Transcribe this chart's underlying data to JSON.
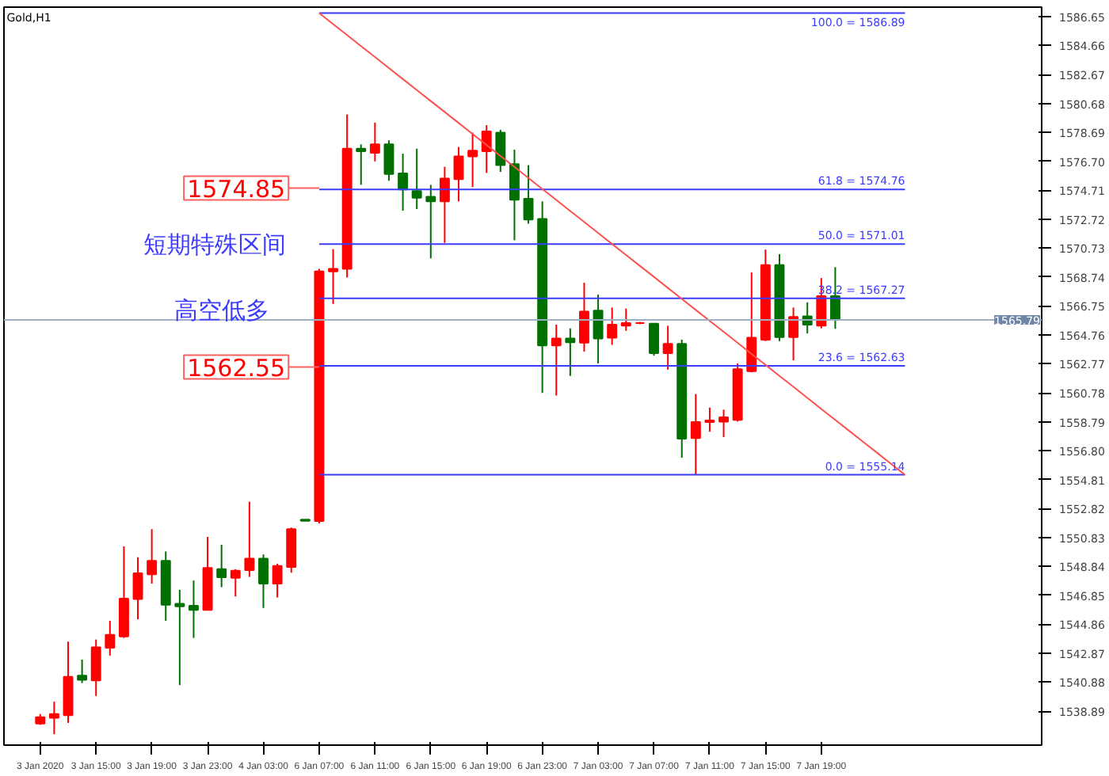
{
  "chart_data": {
    "type": "candlestick",
    "title": "Gold,H1",
    "categories": [
      "3 Jan 2020",
      null,
      null,
      null,
      "3 Jan 15:00",
      null,
      null,
      null,
      "3 Jan 19:00",
      null,
      null,
      null,
      "3 Jan 23:00",
      null,
      null,
      null,
      "4 Jan 03:00",
      null,
      null,
      null,
      "6 Jan 07:00",
      null,
      null,
      null,
      "6 Jan 11:00",
      null,
      null,
      null,
      "6 Jan 15:00",
      null,
      null,
      null,
      "6 Jan 19:00",
      null,
      null,
      null,
      "6 Jan 23:00",
      null,
      null,
      null,
      "7 Jan 03:00",
      null,
      null,
      null,
      "7 Jan 07:00",
      null,
      null,
      null,
      "7 Jan 11:00",
      null,
      null,
      null,
      "7 Jan 15:00",
      null,
      null,
      null,
      "7 Jan 19:00",
      null,
      null,
      null,
      null,
      null,
      null,
      null,
      null,
      null,
      null,
      null,
      null,
      null,
      null,
      null
    ],
    "ohlc": [
      [
        1538.04,
        1538.69,
        1537.94,
        1538.47
      ],
      [
        1538.43,
        1539.54,
        1537.3,
        1538.69
      ],
      [
        1538.61,
        1543.67,
        1538.08,
        1541.25
      ],
      [
        1541.33,
        1542.43,
        1540.82,
        1541.04
      ],
      [
        1541.0,
        1543.81,
        1539.93,
        1543.28
      ],
      [
        1543.25,
        1545.1,
        1542.71,
        1544.13
      ],
      [
        1544.03,
        1550.22,
        1543.92,
        1546.62
      ],
      [
        1546.59,
        1549.47,
        1545.2,
        1548.37
      ],
      [
        1548.3,
        1551.4,
        1547.66,
        1549.23
      ],
      [
        1549.23,
        1549.87,
        1545.1,
        1546.2
      ],
      [
        1546.27,
        1547.23,
        1540.68,
        1546.09
      ],
      [
        1546.13,
        1547.87,
        1543.92,
        1545.85
      ],
      [
        1545.85,
        1550.87,
        1545.85,
        1548.73
      ],
      [
        1548.65,
        1550.33,
        1547.41,
        1548.09
      ],
      [
        1548.05,
        1548.65,
        1546.77,
        1548.55
      ],
      [
        1548.59,
        1553.29,
        1548.12,
        1549.37
      ],
      [
        1549.37,
        1549.66,
        1545.98,
        1547.66
      ],
      [
        1547.66,
        1549.02,
        1546.7,
        1548.87
      ],
      [
        1548.8,
        1551.51,
        1548.41,
        1551.4
      ],
      [
        1552.05,
        1552.05,
        1551.98,
        1551.98
      ],
      [
        1551.96,
        1569.3,
        1551.8,
        1569.13
      ],
      [
        1569.13,
        1570.66,
        1566.89,
        1569.31
      ],
      [
        1569.31,
        1579.92,
        1568.71,
        1577.57
      ],
      [
        1577.57,
        1577.86,
        1575.08,
        1577.39
      ],
      [
        1577.28,
        1579.36,
        1576.69,
        1577.86
      ],
      [
        1577.86,
        1578.14,
        1575.36,
        1575.83
      ],
      [
        1575.86,
        1577.22,
        1573.3,
        1574.76
      ],
      [
        1574.66,
        1577.57,
        1573.41,
        1574.19
      ],
      [
        1574.26,
        1575.08,
        1570.02,
        1573.94
      ],
      [
        1573.94,
        1576.32,
        1571.09,
        1575.51
      ],
      [
        1575.47,
        1577.68,
        1573.94,
        1577.04
      ],
      [
        1577.04,
        1578.67,
        1574.93,
        1577.43
      ],
      [
        1577.39,
        1579.18,
        1575.9,
        1578.75
      ],
      [
        1578.67,
        1578.86,
        1575.97,
        1576.43
      ],
      [
        1576.5,
        1577.5,
        1571.27,
        1574.05
      ],
      [
        1574.12,
        1576.43,
        1572.41,
        1572.69
      ],
      [
        1572.73,
        1573.94,
        1560.77,
        1564.04
      ],
      [
        1564.04,
        1565.47,
        1560.59,
        1564.51
      ],
      [
        1564.51,
        1565.21,
        1561.94,
        1564.25
      ],
      [
        1564.22,
        1568.35,
        1563.61,
        1566.36
      ],
      [
        1566.43,
        1567.53,
        1562.8,
        1564.51
      ],
      [
        1564.57,
        1566.64,
        1564.08,
        1565.47
      ],
      [
        1565.39,
        1566.57,
        1565.04,
        1565.58
      ],
      [
        1565.58,
        1565.65,
        1565.5,
        1565.58
      ],
      [
        1565.53,
        1565.53,
        1563.33,
        1563.5
      ],
      [
        1563.5,
        1565.39,
        1562.37,
        1564.14
      ],
      [
        1564.14,
        1564.43,
        1556.31,
        1557.63
      ],
      [
        1557.67,
        1560.69,
        1555.14,
        1558.77
      ],
      [
        1558.77,
        1559.76,
        1558.1,
        1558.88
      ],
      [
        1558.8,
        1559.62,
        1557.73,
        1559.09
      ],
      [
        1558.91,
        1562.8,
        1558.8,
        1562.4
      ],
      [
        1562.26,
        1569.06,
        1562.19,
        1564.57
      ],
      [
        1564.43,
        1570.63,
        1564.33,
        1569.56
      ],
      [
        1569.56,
        1570.31,
        1564.33,
        1564.61
      ],
      [
        1564.61,
        1566.64,
        1563.01,
        1566.0
      ],
      [
        1566.04,
        1567.0,
        1564.86,
        1565.47
      ],
      [
        1565.39,
        1568.67,
        1565.21,
        1567.42
      ],
      [
        1567.42,
        1569.42,
        1565.18,
        1565.79
      ],
      null,
      null,
      null,
      null,
      null,
      null,
      null,
      null,
      null,
      null,
      null,
      null,
      null,
      null
    ],
    "colors": [
      "#ff0000",
      "#ff0000",
      "#ff0000",
      "#007000",
      "#ff0000",
      "#ff0000",
      "#ff0000",
      "#ff0000",
      "#ff0000",
      "#007000",
      "#007000",
      "#007000",
      "#ff0000",
      "#007000",
      "#ff0000",
      "#ff0000",
      "#007000",
      "#ff0000",
      "#ff0000",
      "#007000",
      "#ff0000",
      "#ff0000",
      "#ff0000",
      "#007000",
      "#ff0000",
      "#007000",
      "#007000",
      "#007000",
      "#007000",
      "#ff0000",
      "#ff0000",
      "#ff0000",
      "#ff0000",
      "#007000",
      "#007000",
      "#007000",
      "#007000",
      "#ff0000",
      "#007000",
      "#ff0000",
      "#007000",
      "#ff0000",
      "#ff0000",
      "#ff0000",
      "#007000",
      "#ff0000",
      "#007000",
      "#ff0000",
      "#ff0000",
      "#ff0000",
      "#ff0000",
      "#ff0000",
      "#ff0000",
      "#007000",
      "#ff0000",
      "#007000",
      "#ff0000",
      "#007000",
      null,
      null,
      null,
      null,
      null,
      null,
      null,
      null,
      null,
      null,
      null,
      null,
      null,
      null
    ],
    "series": [
      {
        "type": "line",
        "name": "100.0 = 1586.89",
        "color": "#3c3cff",
        "values": [
          null,
          null,
          null,
          null,
          null,
          null,
          null,
          null,
          null,
          null,
          null,
          null,
          null,
          null,
          null,
          null,
          null,
          null,
          null,
          null,
          1586.89,
          1586.89,
          1586.89,
          1586.89,
          1586.89,
          1586.89,
          1586.89,
          1586.89,
          1586.89,
          1586.89,
          1586.89,
          1586.89,
          1586.89,
          1586.89,
          1586.89,
          1586.89,
          1586.89,
          1586.89,
          1586.89,
          1586.89,
          1586.89,
          1586.89,
          1586.89,
          1586.89,
          1586.89,
          1586.89,
          1586.89,
          1586.89,
          1586.89,
          1586.89,
          1586.89,
          1586.89,
          1586.89,
          1586.89,
          1586.89,
          1586.89,
          1586.89,
          1586.89,
          1586.89,
          1586.89,
          1586.89,
          1586.89,
          1586.89,
          null,
          null,
          null,
          null,
          null,
          null,
          null,
          null,
          null
        ]
      },
      {
        "type": "line",
        "name": "61.8 = 1574.76",
        "color": "#3c3cff",
        "values": [
          null,
          null,
          null,
          null,
          null,
          null,
          null,
          null,
          null,
          null,
          null,
          null,
          null,
          null,
          null,
          null,
          null,
          null,
          null,
          null,
          1574.76,
          1574.76,
          1574.76,
          1574.76,
          1574.76,
          1574.76,
          1574.76,
          1574.76,
          1574.76,
          1574.76,
          1574.76,
          1574.76,
          1574.76,
          1574.76,
          1574.76,
          1574.76,
          1574.76,
          1574.76,
          1574.76,
          1574.76,
          1574.76,
          1574.76,
          1574.76,
          1574.76,
          1574.76,
          1574.76,
          1574.76,
          1574.76,
          1574.76,
          1574.76,
          1574.76,
          1574.76,
          1574.76,
          1574.76,
          1574.76,
          1574.76,
          1574.76,
          1574.76,
          1574.76,
          1574.76,
          1574.76,
          1574.76,
          1574.76,
          null,
          null,
          null,
          null,
          null,
          null,
          null,
          null,
          null
        ]
      },
      {
        "type": "line",
        "name": "50.0 = 1571.01",
        "color": "#3c3cff",
        "values": [
          null,
          null,
          null,
          null,
          null,
          null,
          null,
          null,
          null,
          null,
          null,
          null,
          null,
          null,
          null,
          null,
          null,
          null,
          null,
          null,
          1571.01,
          1571.01,
          1571.01,
          1571.01,
          1571.01,
          1571.01,
          1571.01,
          1571.01,
          1571.01,
          1571.01,
          1571.01,
          1571.01,
          1571.01,
          1571.01,
          1571.01,
          1571.01,
          1571.01,
          1571.01,
          1571.01,
          1571.01,
          1571.01,
          1571.01,
          1571.01,
          1571.01,
          1571.01,
          1571.01,
          1571.01,
          1571.01,
          1571.01,
          1571.01,
          1571.01,
          1571.01,
          1571.01,
          1571.01,
          1571.01,
          1571.01,
          1571.01,
          1571.01,
          1571.01,
          1571.01,
          1571.01,
          1571.01,
          1571.01,
          null,
          null,
          null,
          null,
          null,
          null,
          null,
          null,
          null
        ]
      },
      {
        "type": "line",
        "name": "38.2 = 1567.27",
        "color": "#3c3cff",
        "values": [
          null,
          null,
          null,
          null,
          null,
          null,
          null,
          null,
          null,
          null,
          null,
          null,
          null,
          null,
          null,
          null,
          null,
          null,
          null,
          null,
          1567.27,
          1567.27,
          1567.27,
          1567.27,
          1567.27,
          1567.27,
          1567.27,
          1567.27,
          1567.27,
          1567.27,
          1567.27,
          1567.27,
          1567.27,
          1567.27,
          1567.27,
          1567.27,
          1567.27,
          1567.27,
          1567.27,
          1567.27,
          1567.27,
          1567.27,
          1567.27,
          1567.27,
          1567.27,
          1567.27,
          1567.27,
          1567.27,
          1567.27,
          1567.27,
          1567.27,
          1567.27,
          1567.27,
          1567.27,
          1567.27,
          1567.27,
          1567.27,
          1567.27,
          1567.27,
          1567.27,
          1567.27,
          1567.27,
          1567.27,
          null,
          null,
          null,
          null,
          null,
          null,
          null,
          null,
          null
        ]
      },
      {
        "type": "line",
        "name": "23.6 = 1562.63",
        "color": "#3c3cff",
        "values": [
          null,
          null,
          null,
          null,
          null,
          null,
          null,
          null,
          null,
          null,
          null,
          null,
          null,
          null,
          null,
          null,
          null,
          null,
          null,
          null,
          1562.63,
          1562.63,
          1562.63,
          1562.63,
          1562.63,
          1562.63,
          1562.63,
          1562.63,
          1562.63,
          1562.63,
          1562.63,
          1562.63,
          1562.63,
          1562.63,
          1562.63,
          1562.63,
          1562.63,
          1562.63,
          1562.63,
          1562.63,
          1562.63,
          1562.63,
          1562.63,
          1562.63,
          1562.63,
          1562.63,
          1562.63,
          1562.63,
          1562.63,
          1562.63,
          1562.63,
          1562.63,
          1562.63,
          1562.63,
          1562.63,
          1562.63,
          1562.63,
          1562.63,
          1562.63,
          1562.63,
          1562.63,
          1562.63,
          1562.63,
          null,
          null,
          null,
          null,
          null,
          null,
          null,
          null,
          null
        ]
      },
      {
        "type": "line",
        "name": "0.0 = 1555.14",
        "color": "#3c3cff",
        "values": [
          null,
          null,
          null,
          null,
          null,
          null,
          null,
          null,
          null,
          null,
          null,
          null,
          null,
          null,
          null,
          null,
          null,
          null,
          null,
          null,
          1555.14,
          1555.14,
          1555.14,
          1555.14,
          1555.14,
          1555.14,
          1555.14,
          1555.14,
          1555.14,
          1555.14,
          1555.14,
          1555.14,
          1555.14,
          1555.14,
          1555.14,
          1555.14,
          1555.14,
          1555.14,
          1555.14,
          1555.14,
          1555.14,
          1555.14,
          1555.14,
          1555.14,
          1555.14,
          1555.14,
          1555.14,
          1555.14,
          1555.14,
          1555.14,
          1555.14,
          1555.14,
          1555.14,
          1555.14,
          1555.14,
          1555.14,
          1555.14,
          1555.14,
          1555.14,
          1555.14,
          1555.14,
          1555.14,
          1555.14,
          null,
          null,
          null,
          null,
          null,
          null,
          null,
          null,
          null
        ]
      },
      {
        "type": "line",
        "color": "#ff5050",
        "values": [
          null,
          null,
          null,
          null,
          null,
          null,
          null,
          null,
          null,
          null,
          null,
          null,
          null,
          null,
          null,
          null,
          null,
          null,
          null,
          null,
          1586.89,
          1586.13,
          1585.38,
          1584.62,
          1583.87,
          1583.11,
          1582.35,
          1581.6,
          1580.84,
          1580.09,
          1579.33,
          1578.57,
          1577.82,
          1577.06,
          1576.31,
          1575.55,
          1574.79,
          1574.04,
          1573.28,
          1572.53,
          1571.77,
          1571.01,
          1570.26,
          1569.5,
          1568.75,
          1567.99,
          1567.23,
          1566.48,
          1565.72,
          1564.97,
          1564.21,
          1563.45,
          1562.7,
          1561.94,
          1561.19,
          1560.43,
          1559.67,
          1558.92,
          1558.16,
          1557.41,
          1556.65,
          1555.89,
          1555.14,
          null,
          null,
          null,
          null,
          null,
          null,
          null,
          null,
          null
        ]
      }
    ],
    "ref_lines": [
      {
        "axis": "y",
        "value": 1565.79,
        "label": "1565.79",
        "color": "#9fb0c4"
      }
    ],
    "annotations": [
      "1574.85",
      "1562.55",
      "短期特殊区间",
      "高空低多"
    ],
    "ylim": [
      1536.55,
      1587.3
    ],
    "yticks": [
      1586.65,
      1584.66,
      1582.67,
      1580.68,
      1578.69,
      {
        "value": 1576.7,
        "label": "1576.70"
      },
      1574.71,
      1572.72,
      1570.73,
      1568.74,
      1566.75,
      1564.76,
      1562.77,
      1560.78,
      1558.79,
      {
        "value": 1556.8,
        "label": "1556.80"
      },
      1554.81,
      1552.82,
      1550.83,
      1548.84,
      1546.85,
      1544.86,
      1542.87,
      1540.88,
      1538.89
    ],
    "grid": false
  }
}
